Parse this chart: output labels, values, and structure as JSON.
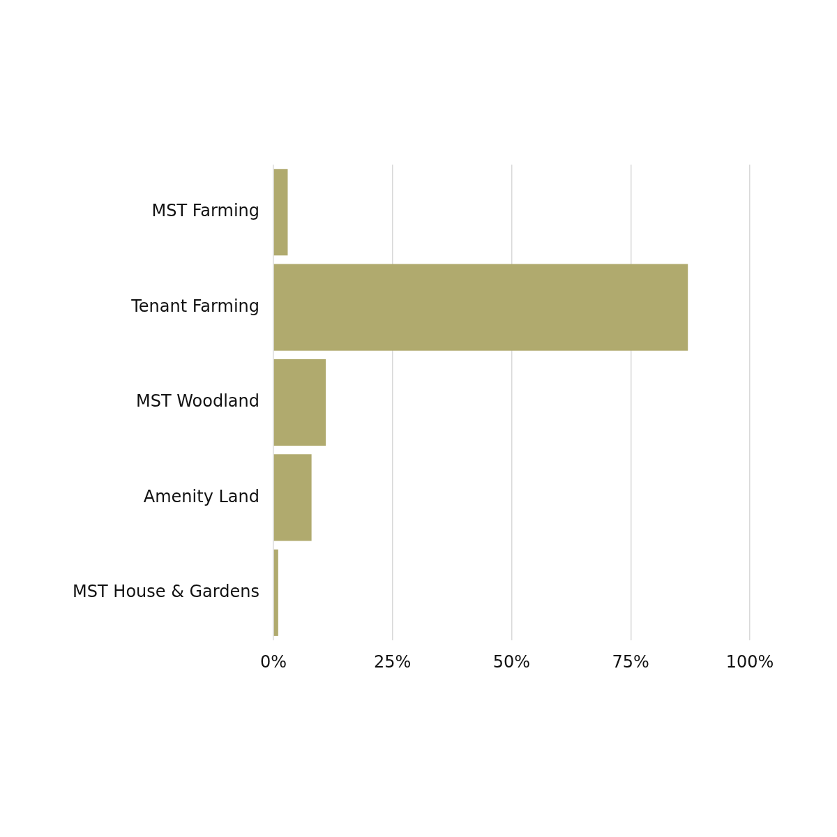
{
  "chart_data": {
    "type": "bar",
    "orientation": "horizontal",
    "categories": [
      "MST Farming",
      "Tenant Farming",
      "MST Woodland",
      "Amenity Land",
      "MST House & Gardens"
    ],
    "values": [
      3,
      87,
      11,
      8,
      1
    ],
    "color": "#b0aa6e",
    "xlim": [
      0,
      100
    ],
    "xticks": [
      {
        "value": 0,
        "label": "0%"
      },
      {
        "value": 25,
        "label": "25%"
      },
      {
        "value": 50,
        "label": "50%"
      },
      {
        "value": 75,
        "label": "75%"
      },
      {
        "value": 100,
        "label": "100%"
      }
    ],
    "grid": "x",
    "legend": false
  }
}
